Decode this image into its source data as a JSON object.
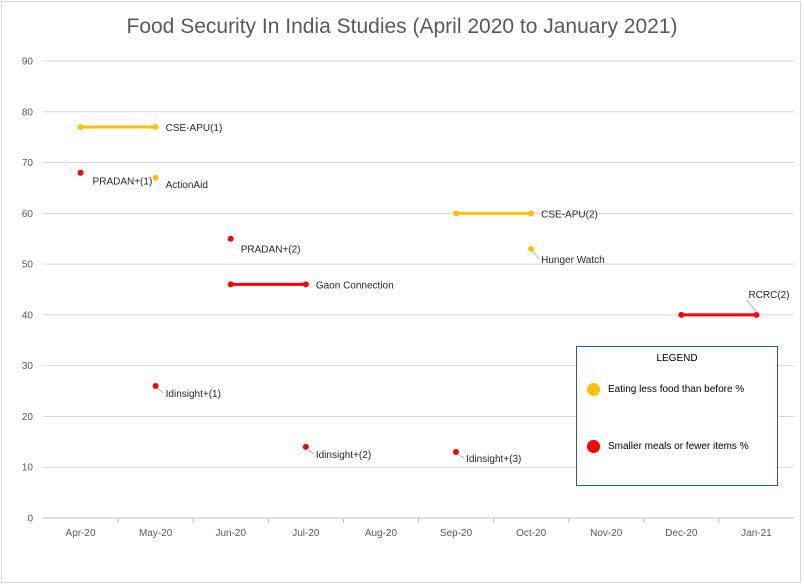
{
  "chart_data": {
    "type": "scatter",
    "title": "Food Security In India Studies (April 2020 to January 2021)",
    "categories": [
      "Apr-20",
      "May-20",
      "Jun-20",
      "Jul-20",
      "Aug-20",
      "Sep-20",
      "Oct-20",
      "Nov-20",
      "Dec-20",
      "Jan-21"
    ],
    "ylim": [
      0,
      90
    ],
    "yticks": [
      0,
      10,
      20,
      30,
      40,
      50,
      60,
      70,
      80,
      90
    ],
    "grid": true,
    "colors": {
      "eating_less": "#FFC000",
      "smaller_meals": "#FF0000",
      "grid": "#d9d9d9",
      "axis_text": "#595959"
    },
    "series": [
      {
        "name": "Eating less food than before %",
        "color": "#FFC000",
        "points": [
          {
            "label": "CSE-APU(1)",
            "x_start": 0,
            "x_end": 1,
            "y": 77
          },
          {
            "label": "ActionAid",
            "x_start": 1,
            "x_end": 1,
            "y": 67
          },
          {
            "label": "CSE-APU(2)",
            "x_start": 5,
            "x_end": 6,
            "y": 60
          },
          {
            "label": "Hunger Watch",
            "x_start": 6,
            "x_end": 6,
            "y": 53
          }
        ]
      },
      {
        "name": "Smaller meals or fewer items %",
        "color": "#FF0000",
        "points": [
          {
            "label": "PRADAN+(1)",
            "x_start": 0,
            "x_end": 0,
            "y": 68
          },
          {
            "label": "PRADAN+(2)",
            "x_start": 2,
            "x_end": 2,
            "y": 55
          },
          {
            "label": "Gaon Connection",
            "x_start": 2,
            "x_end": 3,
            "y": 46
          },
          {
            "label": "RCRC(2)",
            "x_start": 8,
            "x_end": 9,
            "y": 40
          },
          {
            "label": "Idinsight+(1)",
            "x_start": 1,
            "x_end": 1,
            "y": 26
          },
          {
            "label": "Idinsight+(2)",
            "x_start": 3,
            "x_end": 3,
            "y": 14
          },
          {
            "label": "Idinsight+(3)",
            "x_start": 5,
            "x_end": 5,
            "y": 13
          }
        ]
      }
    ],
    "legend": {
      "title": "LEGEND",
      "placement": "bottom-right",
      "items": [
        "Eating less food than before %",
        "Smaller meals or fewer items %"
      ]
    }
  }
}
